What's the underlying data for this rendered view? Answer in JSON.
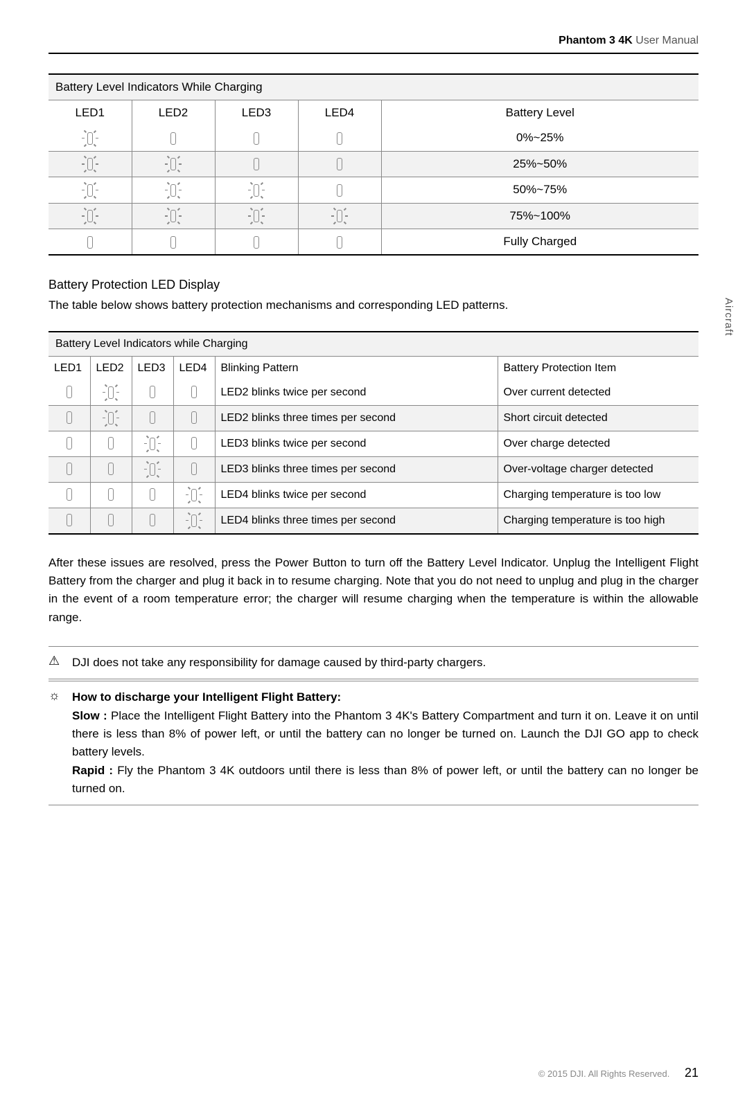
{
  "header": {
    "product_bold": "Phantom 3 4K",
    "product_light": " User Manual"
  },
  "side_tab": "Aircraft",
  "table1": {
    "title": "Battery Level Indicators While Charging",
    "cols": [
      "LED1",
      "LED2",
      "LED3",
      "LED4",
      "Battery Level"
    ],
    "rows": [
      {
        "leds": [
          "blink",
          "off",
          "off",
          "off"
        ],
        "level": "0%~25%",
        "shade": false
      },
      {
        "leds": [
          "blink",
          "blink",
          "off",
          "off"
        ],
        "level": "25%~50%",
        "shade": true
      },
      {
        "leds": [
          "blink",
          "blink",
          "blink",
          "off"
        ],
        "level": "50%~75%",
        "shade": false
      },
      {
        "leds": [
          "blink",
          "blink",
          "blink",
          "blink"
        ],
        "level": "75%~100%",
        "shade": true
      },
      {
        "leds": [
          "off",
          "off",
          "off",
          "off"
        ],
        "level": "Fully Charged",
        "shade": false
      }
    ]
  },
  "section2": {
    "heading": "Battery Protection LED Display",
    "text": "The table below shows battery protection mechanisms and corresponding LED patterns."
  },
  "table2": {
    "title": "Battery Level Indicators while Charging",
    "cols": [
      "LED1",
      "LED2",
      "LED3",
      "LED4",
      "Blinking Pattern",
      "Battery Protection Item"
    ],
    "rows": [
      {
        "leds": [
          "off",
          "blink",
          "off",
          "off"
        ],
        "pattern": "LED2 blinks twice per second",
        "item": "Over current detected",
        "shade": false
      },
      {
        "leds": [
          "off",
          "blink",
          "off",
          "off"
        ],
        "pattern": "LED2 blinks three times per second",
        "item": "Short circuit detected",
        "shade": true
      },
      {
        "leds": [
          "off",
          "off",
          "blink",
          "off"
        ],
        "pattern": "LED3 blinks twice per second",
        "item": "Over charge detected",
        "shade": false
      },
      {
        "leds": [
          "off",
          "off",
          "blink",
          "off"
        ],
        "pattern": "LED3 blinks three times per second",
        "item": "Over-voltage charger detected",
        "shade": true
      },
      {
        "leds": [
          "off",
          "off",
          "off",
          "blink"
        ],
        "pattern": "LED4 blinks twice per second",
        "item": "Charging temperature is too low",
        "shade": false
      },
      {
        "leds": [
          "off",
          "off",
          "off",
          "blink"
        ],
        "pattern": "LED4 blinks three times per second",
        "item": "Charging temperature is too high",
        "shade": true
      }
    ]
  },
  "para1": "After these issues are resolved, press the Power Button to turn off the Battery Level Indicator. Unplug the Intelligent Flight Battery from the charger and plug it back in to resume charging. Note that you do not need to unplug and plug in the charger in the event of a room temperature error; the charger will resume charging when the temperature is within the allowable range.",
  "warning": {
    "icon": "⚠",
    "text": "DJI does not take any responsibility for damage caused by third-party chargers."
  },
  "tip": {
    "icon": "☼",
    "heading": "How to discharge your Intelligent Flight Battery:",
    "slow_label": "Slow :",
    "slow_text": " Place the Intelligent Flight Battery into the Phantom 3 4K's Battery Compartment and turn it on. Leave it on until there is less than 8% of power left, or until the battery can no longer be turned on. Launch the DJI GO app to check battery levels.",
    "rapid_label": "Rapid :",
    "rapid_text": " Fly the Phantom 3 4K outdoors until there is less than 8% of power left, or until the battery can no longer be turned on."
  },
  "footer": {
    "copyright": "© 2015 DJI. All Rights Reserved.",
    "page": "21"
  }
}
